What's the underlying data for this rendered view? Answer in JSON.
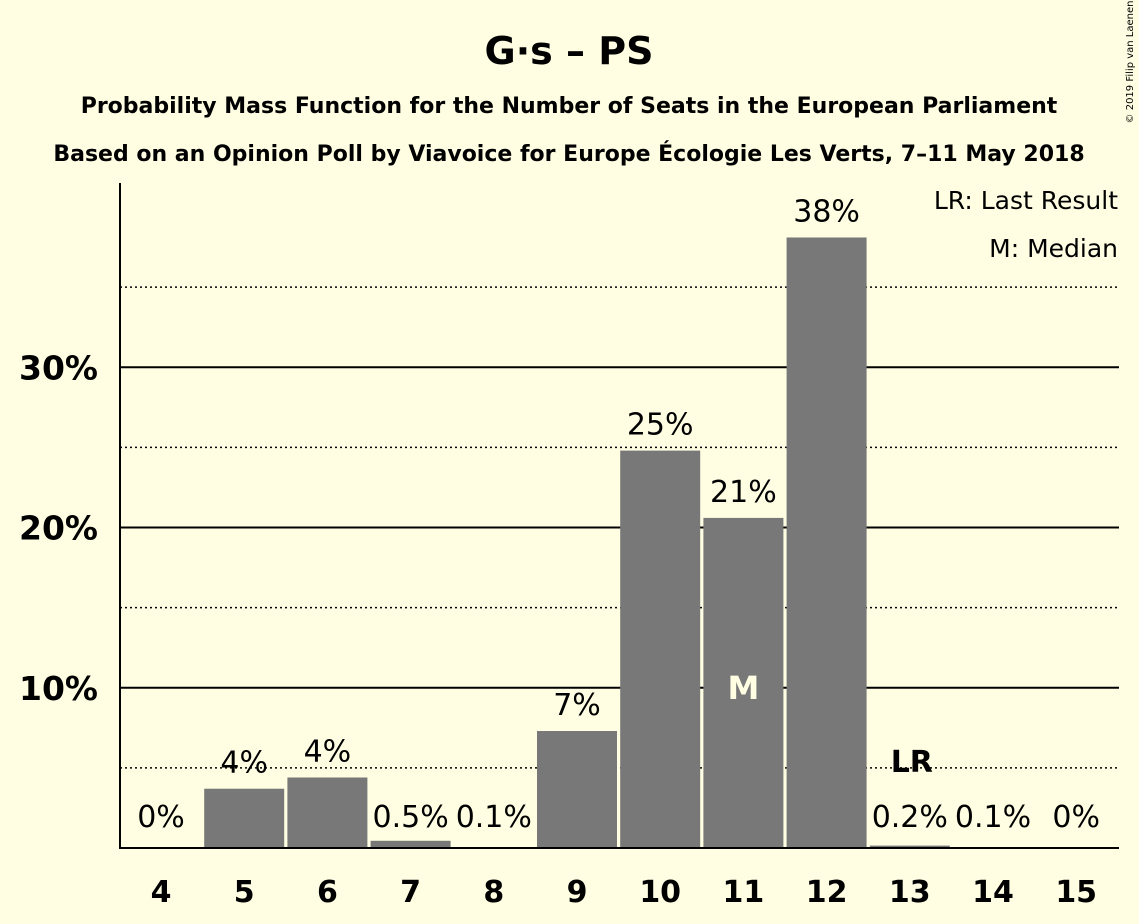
{
  "title": "G·s – PS",
  "subtitle_line1": "Probability Mass Function for the Number of Seats in the European Parliament",
  "subtitle_line2": "Based on an Opinion Poll by Viavoice for Europe Écologie Les Verts, 7–11 May 2018",
  "legend": {
    "lr": "LR: Last Result",
    "median": "M: Median"
  },
  "copyright": "© 2019 Filip van Laenen",
  "colors": {
    "background": "#FFFEE3",
    "bar": "#787878",
    "axis": "#000000"
  },
  "chart_data": {
    "type": "bar",
    "categories": [
      "4",
      "5",
      "6",
      "7",
      "8",
      "9",
      "10",
      "11",
      "12",
      "13",
      "14",
      "15"
    ],
    "values": [
      0,
      3.7,
      4.4,
      0.45,
      0.05,
      7.3,
      24.8,
      20.6,
      38.1,
      0.15,
      0.05,
      0
    ],
    "data_labels": [
      "0%",
      "4%",
      "4%",
      "0.5%",
      "0.1%",
      "7%",
      "25%",
      "21%",
      "38%",
      "0.2%",
      "0.1%",
      "0%"
    ],
    "ylim": [
      0,
      41.5
    ],
    "yticks": [
      {
        "value": 10,
        "label": "10%"
      },
      {
        "value": 20,
        "label": "20%"
      },
      {
        "value": 30,
        "label": "30%"
      }
    ],
    "minor_gridlines": [
      5,
      15,
      25,
      35
    ],
    "median_category": "11",
    "median_marker": "M",
    "last_result_category": "13",
    "last_result_marker": "LR",
    "grid": true,
    "legend_position": "top-right"
  }
}
